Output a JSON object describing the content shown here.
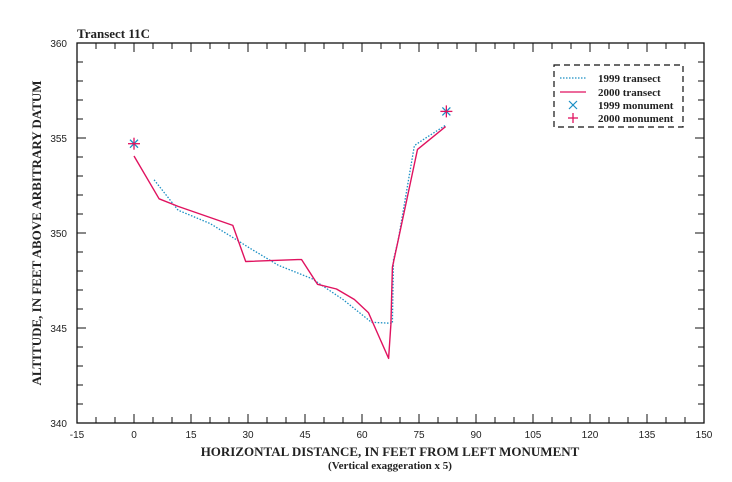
{
  "chart_data": {
    "type": "line",
    "title": "Transect 11C",
    "xlabel": "HORIZONTAL DISTANCE, IN FEET FROM LEFT MONUMENT",
    "xlabel_sub": "(Vertical exaggeration x 5)",
    "ylabel": "ALTITUDE, IN FEET ABOVE ARBITRARY DATUM",
    "xlim": [
      -15,
      150
    ],
    "ylim": [
      340,
      360
    ],
    "x_ticks": [
      -15,
      0,
      15,
      30,
      45,
      60,
      75,
      90,
      105,
      120,
      135,
      150
    ],
    "x_minor_step": 5,
    "y_ticks": [
      340,
      345,
      350,
      355,
      360
    ],
    "y_minor_step": 1,
    "grid": false,
    "legend_position": "upper right",
    "series": [
      {
        "name": "1999 transect",
        "style": "dotted",
        "color": "#1a8fc4",
        "points": [
          [
            5.3,
            352.8
          ],
          [
            11.6,
            351.2
          ],
          [
            20,
            350.5
          ],
          [
            25.7,
            349.8
          ],
          [
            30.5,
            349.2
          ],
          [
            38,
            348.3
          ],
          [
            46.8,
            347.6
          ],
          [
            55,
            346.5
          ],
          [
            62.5,
            345.3
          ],
          [
            68,
            345.25
          ],
          [
            68.3,
            348.6
          ],
          [
            69.5,
            349.6
          ],
          [
            73.8,
            354.6
          ],
          [
            76,
            354.9
          ],
          [
            82.2,
            355.7
          ]
        ]
      },
      {
        "name": "2000 transect",
        "style": "solid",
        "color": "#e0125f",
        "points": [
          [
            0,
            354.05
          ],
          [
            6.6,
            351.8
          ],
          [
            11.6,
            351.4
          ],
          [
            26,
            350.4
          ],
          [
            29.4,
            348.5
          ],
          [
            43.1,
            348.6
          ],
          [
            44.1,
            348.6
          ],
          [
            48.3,
            347.3
          ],
          [
            53.3,
            347.05
          ],
          [
            58,
            346.5
          ],
          [
            61.7,
            345.8
          ],
          [
            67,
            343.4
          ],
          [
            67.6,
            345.2
          ],
          [
            68.0,
            348.2
          ],
          [
            69.4,
            349.5
          ],
          [
            74.6,
            354.4
          ],
          [
            82,
            355.6
          ]
        ]
      },
      {
        "name": "1999 monument",
        "marker": "x",
        "color": "#1a8fc4",
        "points": [
          [
            0,
            354.7
          ],
          [
            82.2,
            356.4
          ]
        ]
      },
      {
        "name": "2000 monument",
        "marker": "+",
        "color": "#e0125f",
        "points": [
          [
            0,
            354.7
          ],
          [
            82.2,
            356.4
          ]
        ]
      }
    ]
  },
  "legend": {
    "items": [
      {
        "label": "1999 transect"
      },
      {
        "label": "2000 transect"
      },
      {
        "label": "1999 monument"
      },
      {
        "label": "2000 monument"
      }
    ]
  }
}
